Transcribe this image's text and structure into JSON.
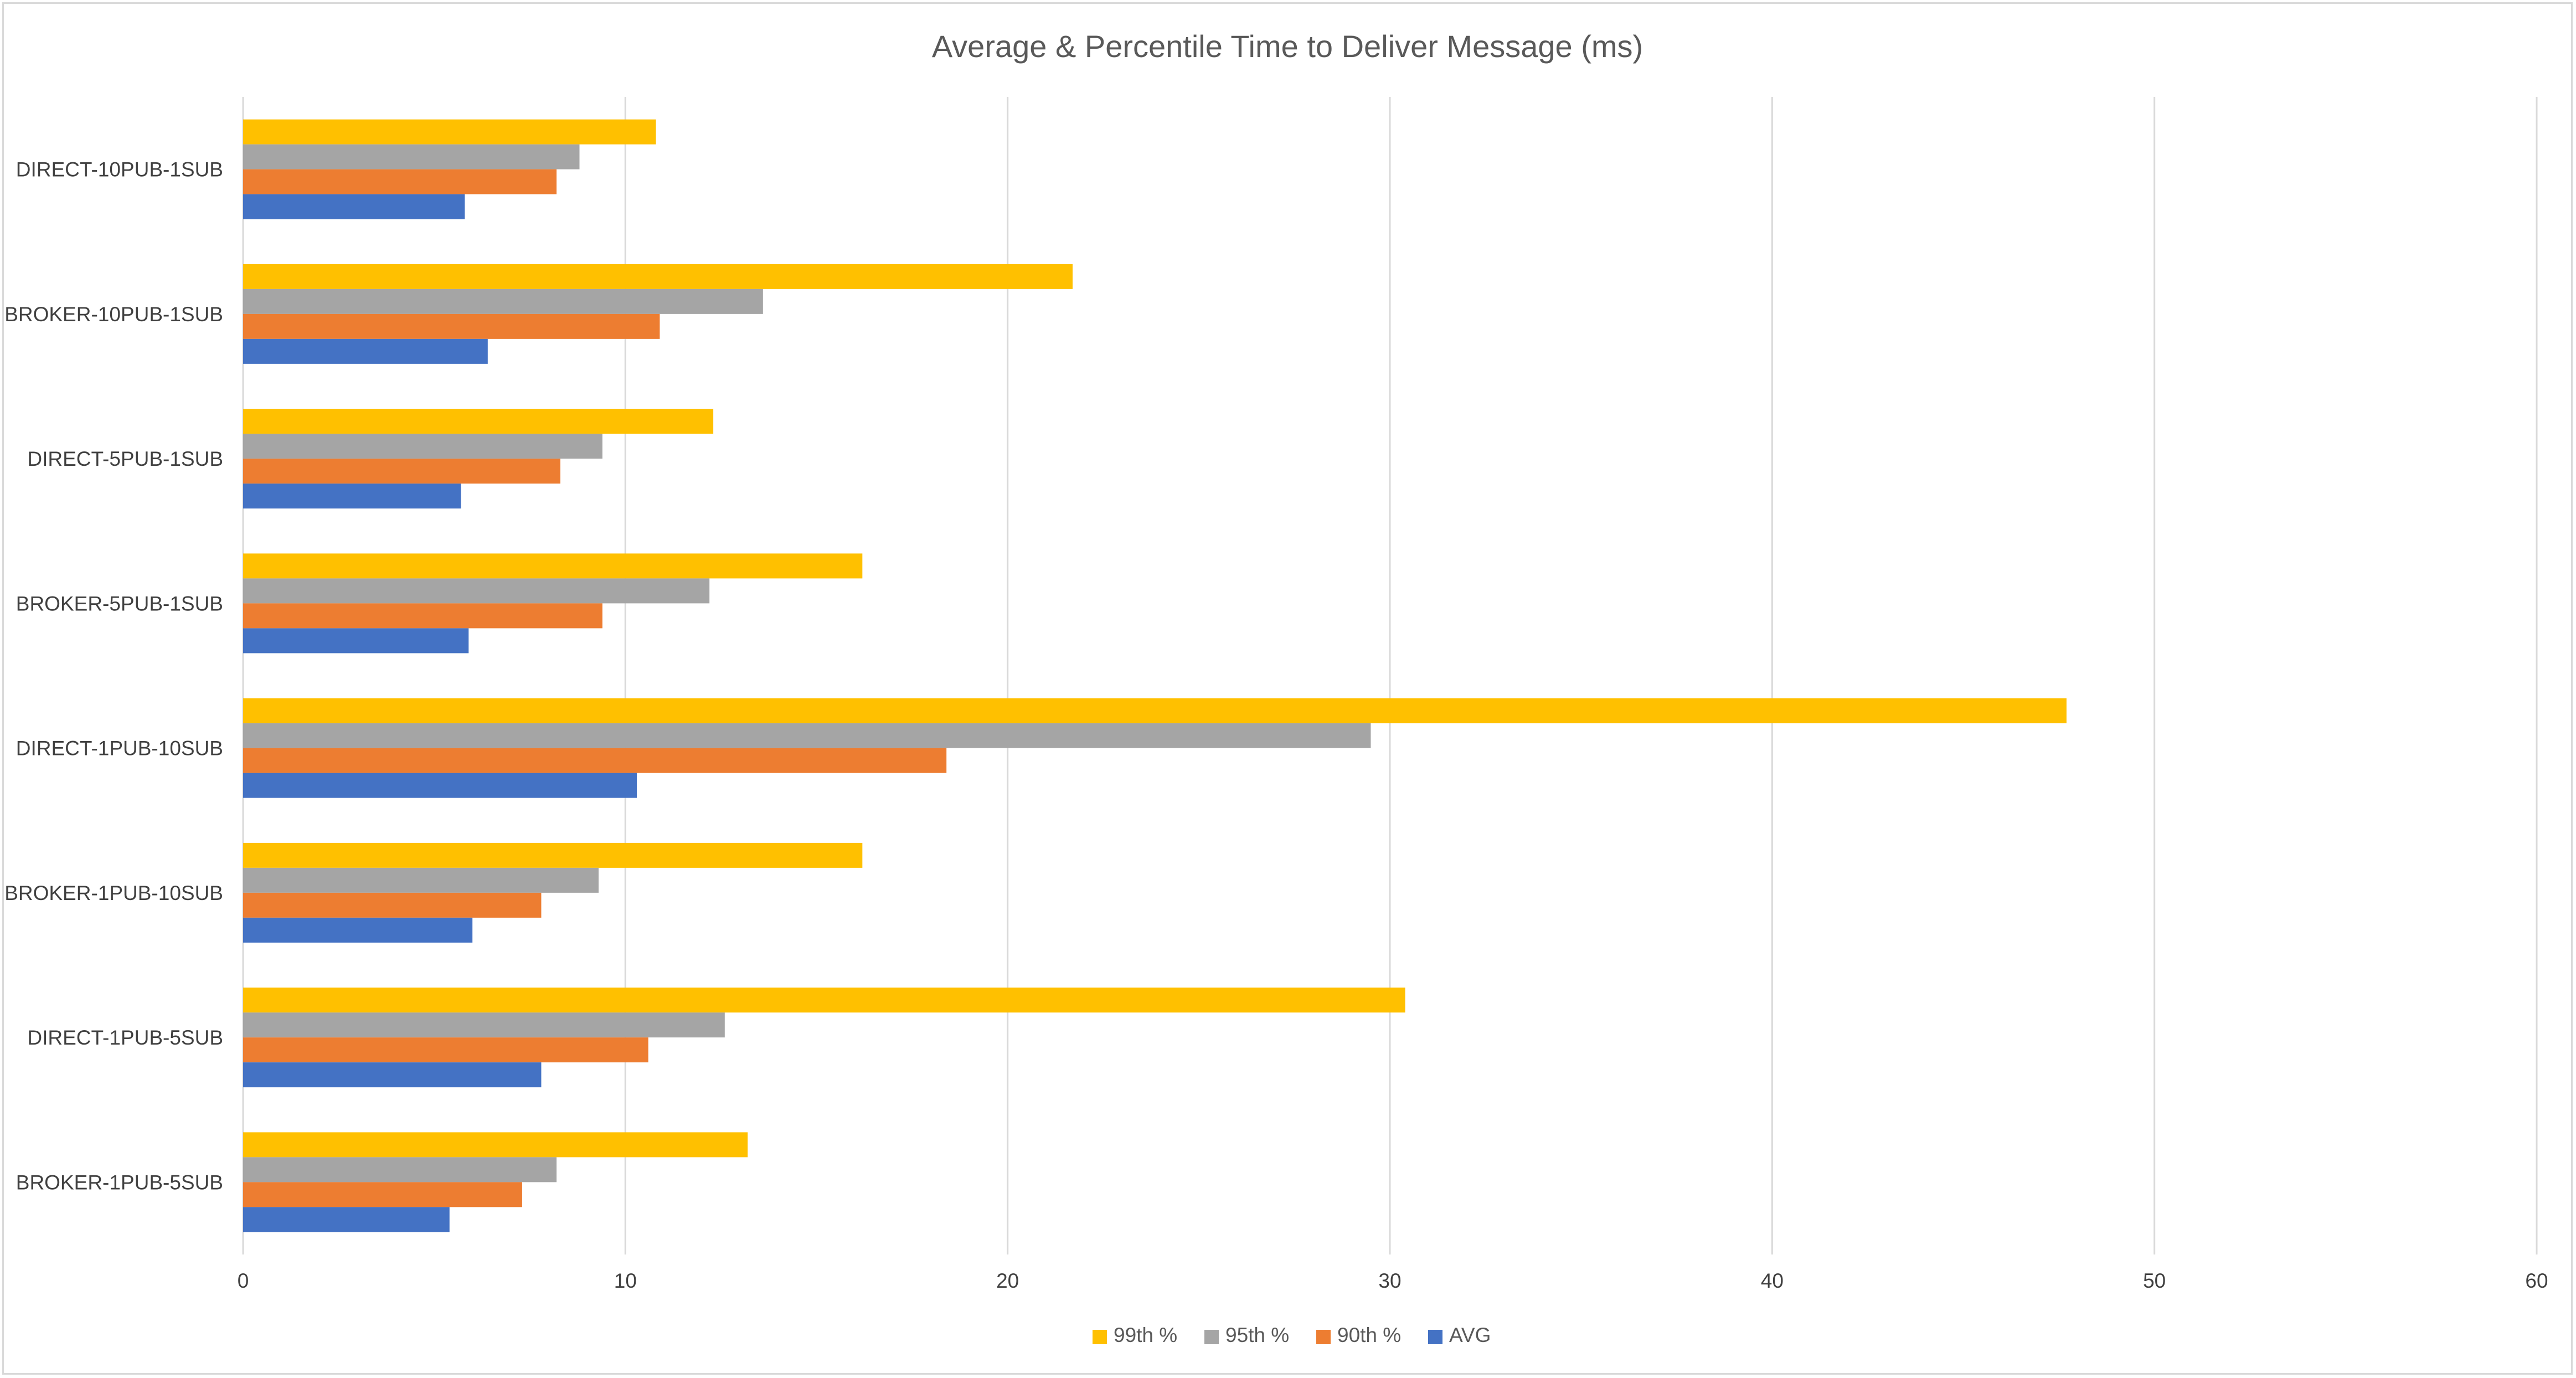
{
  "chart_data": {
    "type": "bar",
    "orientation": "horizontal",
    "title": "Average & Percentile Time to Deliver Message (ms)",
    "categories": [
      "DIRECT-10PUB-1SUB",
      "BROKER-10PUB-1SUB",
      "DIRECT-5PUB-1SUB",
      "BROKER-5PUB-1SUB",
      "DIRECT-1PUB-10SUB",
      "BROKER-1PUB-10SUB",
      "DIRECT-1PUB-5SUB",
      "BROKER-1PUB-5SUB"
    ],
    "series": [
      {
        "name": "99th %",
        "color": "#FFC000",
        "values": [
          10.8,
          21.7,
          12.3,
          16.2,
          47.7,
          16.2,
          30.4,
          13.2
        ]
      },
      {
        "name": "95th %",
        "color": "#A5A5A5",
        "values": [
          8.8,
          13.6,
          9.4,
          12.2,
          29.5,
          9.3,
          12.6,
          8.2
        ]
      },
      {
        "name": "90th %",
        "color": "#ED7D31",
        "values": [
          8.2,
          10.9,
          8.3,
          9.4,
          18.4,
          7.8,
          10.6,
          7.3
        ]
      },
      {
        "name": "AVG",
        "color": "#4472C4",
        "values": [
          5.8,
          6.4,
          5.7,
          5.9,
          10.3,
          6.0,
          7.8,
          5.4
        ]
      }
    ],
    "xlim": [
      0,
      60
    ],
    "x_ticks": [
      "0",
      "10",
      "20",
      "30",
      "40",
      "50",
      "60"
    ],
    "grid": true,
    "legend_position": "bottom"
  }
}
